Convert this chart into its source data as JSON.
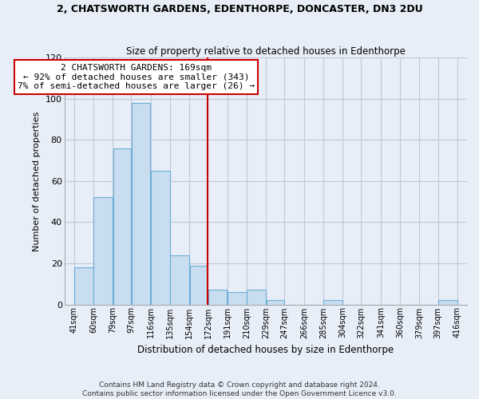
{
  "title": "2, CHATSWORTH GARDENS, EDENTHORPE, DONCASTER, DN3 2DU",
  "subtitle": "Size of property relative to detached houses in Edenthorpe",
  "xlabel": "Distribution of detached houses by size in Edenthorpe",
  "ylabel": "Number of detached properties",
  "bar_color": "#c8ddf0",
  "bar_edge_color": "#6baed6",
  "bins": [
    41,
    60,
    79,
    97,
    116,
    135,
    154,
    172,
    191,
    210,
    229,
    247,
    266,
    285,
    304,
    322,
    341,
    360,
    379,
    397,
    416
  ],
  "counts": [
    18,
    52,
    76,
    98,
    65,
    24,
    19,
    7,
    6,
    7,
    2,
    0,
    0,
    2,
    0,
    0,
    0,
    0,
    0,
    2
  ],
  "tick_labels": [
    "41sqm",
    "60sqm",
    "79sqm",
    "97sqm",
    "116sqm",
    "135sqm",
    "154sqm",
    "172sqm",
    "191sqm",
    "210sqm",
    "229sqm",
    "247sqm",
    "266sqm",
    "285sqm",
    "304sqm",
    "322sqm",
    "341sqm",
    "360sqm",
    "379sqm",
    "397sqm",
    "416sqm"
  ],
  "ylim": [
    0,
    120
  ],
  "yticks": [
    0,
    20,
    40,
    60,
    80,
    100,
    120
  ],
  "property_line_x": 172,
  "property_line_color": "#cc0000",
  "annotation_line1": "2 CHATSWORTH GARDENS: 169sqm",
  "annotation_line2": "← 92% of detached houses are smaller (343)",
  "annotation_line3": "7% of semi-detached houses are larger (26) →",
  "annotation_box_color": "white",
  "annotation_box_edge": "#cc0000",
  "footer_line1": "Contains HM Land Registry data © Crown copyright and database right 2024.",
  "footer_line2": "Contains public sector information licensed under the Open Government Licence v3.0.",
  "background_color": "#e8eef8"
}
